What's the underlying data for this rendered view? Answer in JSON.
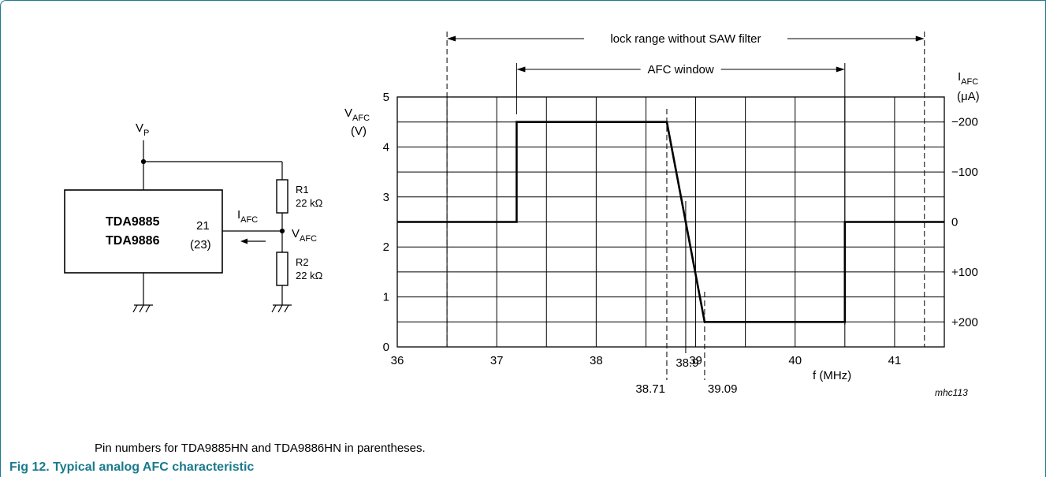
{
  "colors": {
    "frame": "#1a7a8c",
    "caption": "#1a7a8c",
    "ink": "#000000"
  },
  "circuit": {
    "supply": "V",
    "supply_sub": "P",
    "ic_name_1": "TDA9885",
    "ic_name_2": "TDA9886",
    "pin": "21",
    "pin_alt": "(23)",
    "current": "I",
    "current_sub": "AFC",
    "node": "V",
    "node_sub": "AFC",
    "r1_name": "R1",
    "r1_value": "22 kΩ",
    "r2_name": "R2",
    "r2_value": "22 kΩ"
  },
  "chart_data": {
    "type": "line",
    "x": [
      36,
      36.5,
      37.2,
      37.2,
      38.71,
      39.09,
      40.5,
      40.5,
      41.5
    ],
    "y": [
      2.5,
      2.5,
      2.5,
      4.5,
      4.5,
      0.5,
      0.5,
      2.5,
      2.5
    ],
    "xlim": [
      36,
      41.5
    ],
    "ylim": [
      0,
      5
    ],
    "x_ticks": [
      "36",
      "37",
      "38",
      "39",
      "40",
      "41"
    ],
    "y_ticks": [
      "0",
      "1",
      "2",
      "3",
      "4",
      "5"
    ],
    "right_ticks": [
      {
        "y": 4.5,
        "label": "−200"
      },
      {
        "y": 3.5,
        "label": "−100"
      },
      {
        "y": 2.5,
        "label": "0"
      },
      {
        "y": 1.5,
        "label": "+100"
      },
      {
        "y": 0.5,
        "label": "+200"
      }
    ],
    "ylabel": "V",
    "ylabel_sub": "AFC",
    "ylabel_unit": "(V)",
    "y2label": "I",
    "y2label_sub": "AFC",
    "y2label_unit": "(μA)",
    "xlabel": "f (MHz)",
    "annotations": [
      {
        "x": 38.71,
        "label": "38.71"
      },
      {
        "x": 38.9,
        "label": "38.9"
      },
      {
        "x": 39.09,
        "label": "39.09"
      }
    ],
    "ranges": [
      {
        "label": "lock range without SAW filter",
        "from": 36.5,
        "to": 41.3
      },
      {
        "label": "AFC window",
        "from": 37.2,
        "to": 40.5
      }
    ],
    "figure_id": "mhc113",
    "grid": true
  },
  "note": "Pin numbers for TDA9885HN and TDA9886HN in parentheses.",
  "caption": "Fig 12.  Typical analog AFC characteristic"
}
